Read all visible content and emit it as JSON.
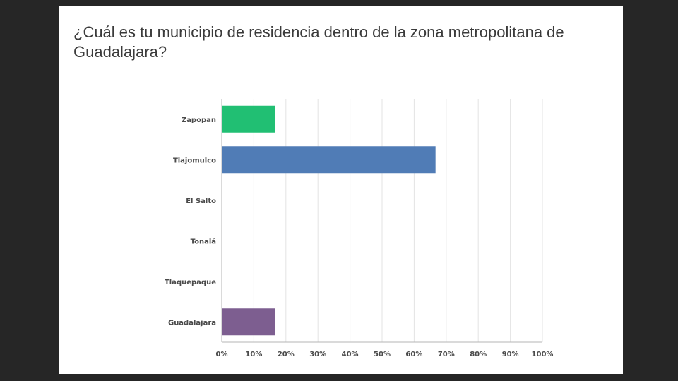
{
  "question": {
    "title": "¿Cuál es tu municipio de residencia dentro de la zona metropolitana de Guadalajara?"
  },
  "colors": {
    "background_frame": "#262626",
    "card": "#ffffff",
    "grid": "#e3e3e3",
    "axis": "#b5b5b5",
    "text": "#4a4a4a"
  },
  "chart_data": {
    "type": "bar",
    "orientation": "horizontal",
    "categories": [
      "Zapopan",
      "Tlajomulco",
      "El Salto",
      "Tonalá",
      "Tlaquepaque",
      "Guadalajara"
    ],
    "values": [
      16.67,
      66.67,
      0,
      0,
      0,
      16.67
    ],
    "colors": [
      "#21bf73",
      "#507cb6",
      "#f05b4f",
      "#f7c143",
      "#6bc8cd",
      "#7d5e90"
    ],
    "xlim": [
      0,
      100
    ],
    "xticks": [
      "0%",
      "10%",
      "20%",
      "30%",
      "40%",
      "50%",
      "60%",
      "70%",
      "80%",
      "90%",
      "100%"
    ],
    "grid": true,
    "legend": "none"
  }
}
